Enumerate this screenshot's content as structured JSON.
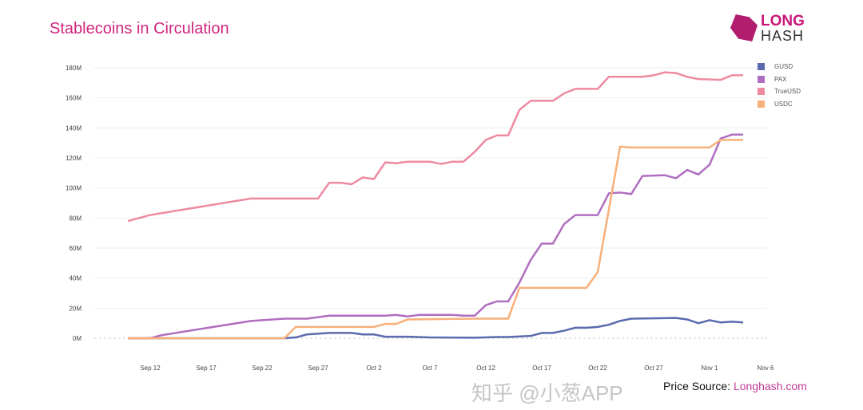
{
  "title": "Stablecoins in Circulation",
  "logo": {
    "line1": "LONG",
    "line2": "HASH"
  },
  "source": {
    "label": "Price Source:",
    "link": "Longhash.com"
  },
  "watermark": "知乎 @小葱APP",
  "chart_data": {
    "type": "line",
    "title": "Stablecoins in Circulation",
    "x_unit": "days since Sep 10",
    "xlim": [
      -2,
      57
    ],
    "ylim": [
      0,
      180
    ],
    "yticks": [
      0,
      20,
      40,
      60,
      80,
      100,
      120,
      140,
      160,
      180
    ],
    "ytick_labels": [
      "0M",
      "20M",
      "40M",
      "60M",
      "80M",
      "100M",
      "120M",
      "140M",
      "160M",
      "180M"
    ],
    "xticks": [
      2,
      7,
      12,
      17,
      22,
      27,
      32,
      37,
      42,
      47,
      52,
      57
    ],
    "xtick_labels": [
      "Sep 12",
      "Sep 17",
      "Sep 22",
      "Sep 27",
      "Oct 2",
      "Oct 7",
      "Oct 12",
      "Oct 17",
      "Oct 22",
      "Oct 27",
      "Nov 1",
      "Nov 6"
    ],
    "legend_position": "top-right",
    "grid": true,
    "series": [
      {
        "name": "GUSD",
        "color": "#5a6aad",
        "points": [
          [
            0,
            0
          ],
          [
            14,
            0
          ],
          [
            15,
            0.5
          ],
          [
            16,
            2.5
          ],
          [
            18,
            3.5
          ],
          [
            20,
            3.5
          ],
          [
            21,
            2.5
          ],
          [
            22,
            2.5
          ],
          [
            23,
            1
          ],
          [
            25,
            1
          ],
          [
            27,
            0.5
          ],
          [
            31,
            0.3
          ],
          [
            33,
            0.8
          ],
          [
            34,
            0.8
          ],
          [
            36,
            1.5
          ],
          [
            37,
            3.5
          ],
          [
            38,
            3.5
          ],
          [
            39,
            5
          ],
          [
            40,
            7
          ],
          [
            41,
            7
          ],
          [
            42,
            7.5
          ],
          [
            43,
            9
          ],
          [
            44,
            11.5
          ],
          [
            45,
            13
          ],
          [
            49,
            13.5
          ],
          [
            50,
            12.5
          ],
          [
            51,
            10
          ],
          [
            52,
            12
          ],
          [
            53,
            10.5
          ],
          [
            54,
            11
          ],
          [
            55,
            10.5
          ]
        ]
      },
      {
        "name": "PAX",
        "color": "#b06ec0",
        "points": [
          [
            0,
            0
          ],
          [
            2,
            0
          ],
          [
            3,
            2
          ],
          [
            11,
            11.5
          ],
          [
            14,
            13
          ],
          [
            16,
            13
          ],
          [
            18,
            15
          ],
          [
            23,
            15
          ],
          [
            24,
            15.5
          ],
          [
            25,
            14.5
          ],
          [
            26,
            15.5
          ],
          [
            29,
            15.5
          ],
          [
            30,
            15
          ],
          [
            31,
            15
          ],
          [
            32,
            22
          ],
          [
            33,
            24.5
          ],
          [
            34,
            24.5
          ],
          [
            35,
            37
          ],
          [
            36,
            52
          ],
          [
            37,
            63
          ],
          [
            38,
            63
          ],
          [
            39,
            76
          ],
          [
            40,
            82
          ],
          [
            42,
            82
          ],
          [
            43,
            96.5
          ],
          [
            44,
            97
          ],
          [
            45,
            96
          ],
          [
            46,
            108
          ],
          [
            48,
            108.5
          ],
          [
            49,
            106.5
          ],
          [
            50,
            112
          ],
          [
            51,
            109
          ],
          [
            52,
            115.5
          ],
          [
            53,
            133
          ],
          [
            54,
            135.5
          ],
          [
            55,
            135.5
          ]
        ]
      },
      {
        "name": "TrueUSD",
        "color": "#ee8aa0",
        "points": [
          [
            0,
            78
          ],
          [
            2,
            82
          ],
          [
            11,
            93
          ],
          [
            17,
            93
          ],
          [
            18,
            103.5
          ],
          [
            19,
            103.5
          ],
          [
            20,
            102.5
          ],
          [
            21,
            107
          ],
          [
            22,
            106
          ],
          [
            23,
            117
          ],
          [
            24,
            116.5
          ],
          [
            25,
            117.5
          ],
          [
            27,
            117.5
          ],
          [
            28,
            116
          ],
          [
            29,
            117.5
          ],
          [
            30,
            117.5
          ],
          [
            31,
            124
          ],
          [
            32,
            132
          ],
          [
            33,
            135
          ],
          [
            34,
            135
          ],
          [
            35,
            152
          ],
          [
            36,
            158
          ],
          [
            38,
            158
          ],
          [
            39,
            163
          ],
          [
            40,
            166
          ],
          [
            42,
            166
          ],
          [
            43,
            174
          ],
          [
            46,
            174
          ],
          [
            47,
            175
          ],
          [
            48,
            177
          ],
          [
            49,
            176.5
          ],
          [
            50,
            174
          ],
          [
            51,
            172.5
          ],
          [
            53,
            172
          ],
          [
            54,
            175
          ],
          [
            55,
            175
          ]
        ]
      },
      {
        "name": "USDC",
        "color": "#f7b07a",
        "points": [
          [
            0,
            0
          ],
          [
            14,
            0
          ],
          [
            15,
            7.5
          ],
          [
            22,
            7.5
          ],
          [
            23,
            9.5
          ],
          [
            24,
            9.5
          ],
          [
            25,
            12.5
          ],
          [
            31,
            13
          ],
          [
            34,
            13
          ],
          [
            35,
            33.5
          ],
          [
            41,
            33.5
          ],
          [
            42,
            44
          ],
          [
            44,
            127.5
          ],
          [
            45,
            127
          ],
          [
            52,
            127
          ],
          [
            53,
            132
          ],
          [
            55,
            132
          ]
        ]
      }
    ]
  }
}
